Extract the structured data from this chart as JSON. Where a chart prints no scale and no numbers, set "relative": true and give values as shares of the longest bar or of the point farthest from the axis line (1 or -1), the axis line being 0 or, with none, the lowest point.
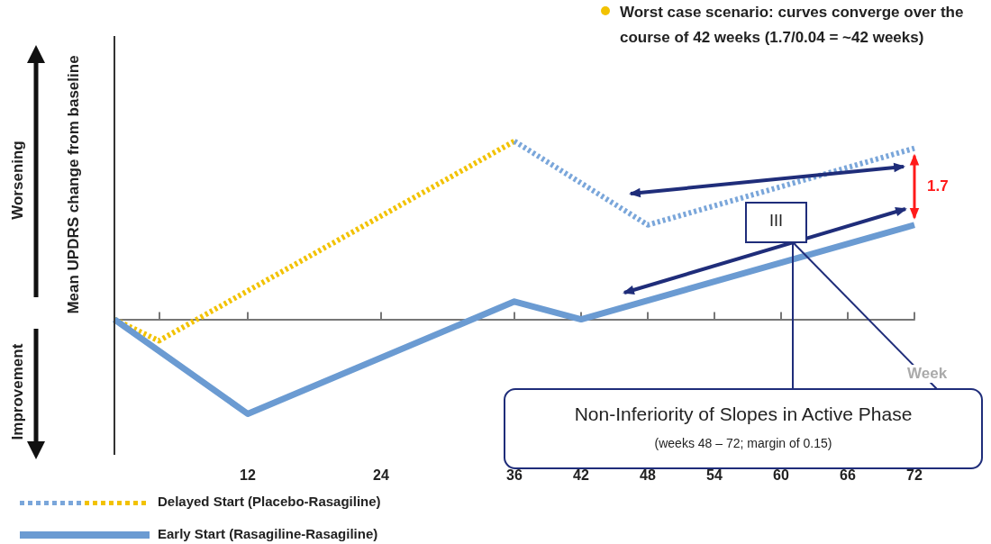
{
  "chart_data": {
    "type": "line",
    "relative": true,
    "xlabel": "Week",
    "ylabel": "Mean UPDRS change from baseline",
    "xlim": [
      0,
      72
    ],
    "xticks": [
      {
        "value": 4,
        "label": null
      },
      12,
      24,
      36,
      42,
      48,
      54,
      60,
      66,
      72
    ],
    "line_style": "dotted",
    "marker": "none",
    "grid": false,
    "legend": "bottom left",
    "series": [
      {
        "name": "Delayed Start (Placebo-Rasagiline)",
        "color": "#f2c200",
        "x": [
          0,
          4,
          36
        ],
        "values": [
          0,
          -0.12,
          1
        ]
      },
      {
        "color": "#7aa6da",
        "x": [
          36,
          48,
          72
        ],
        "values": [
          1,
          0.53,
          0.96
        ]
      },
      {
        "name": "Early Start (Rasagiline-Rasagiline)",
        "color": "#6b9bd2",
        "line_style": "solid",
        "x": [
          0,
          12,
          36,
          42,
          72
        ],
        "values": [
          0,
          -0.53,
          0.1,
          0,
          0.53
        ]
      }
    ],
    "annotations": [
      "Worst case scenario:  curves converge over the course of 42 weeks (1.7/0.04 = ~42 weeks)",
      "1.7",
      "III",
      "Non-Inferiority of Slopes in Active Phase",
      "(weeks 48 – 72; margin of 0.15)",
      "Worsening",
      "Improvement"
    ]
  }
}
